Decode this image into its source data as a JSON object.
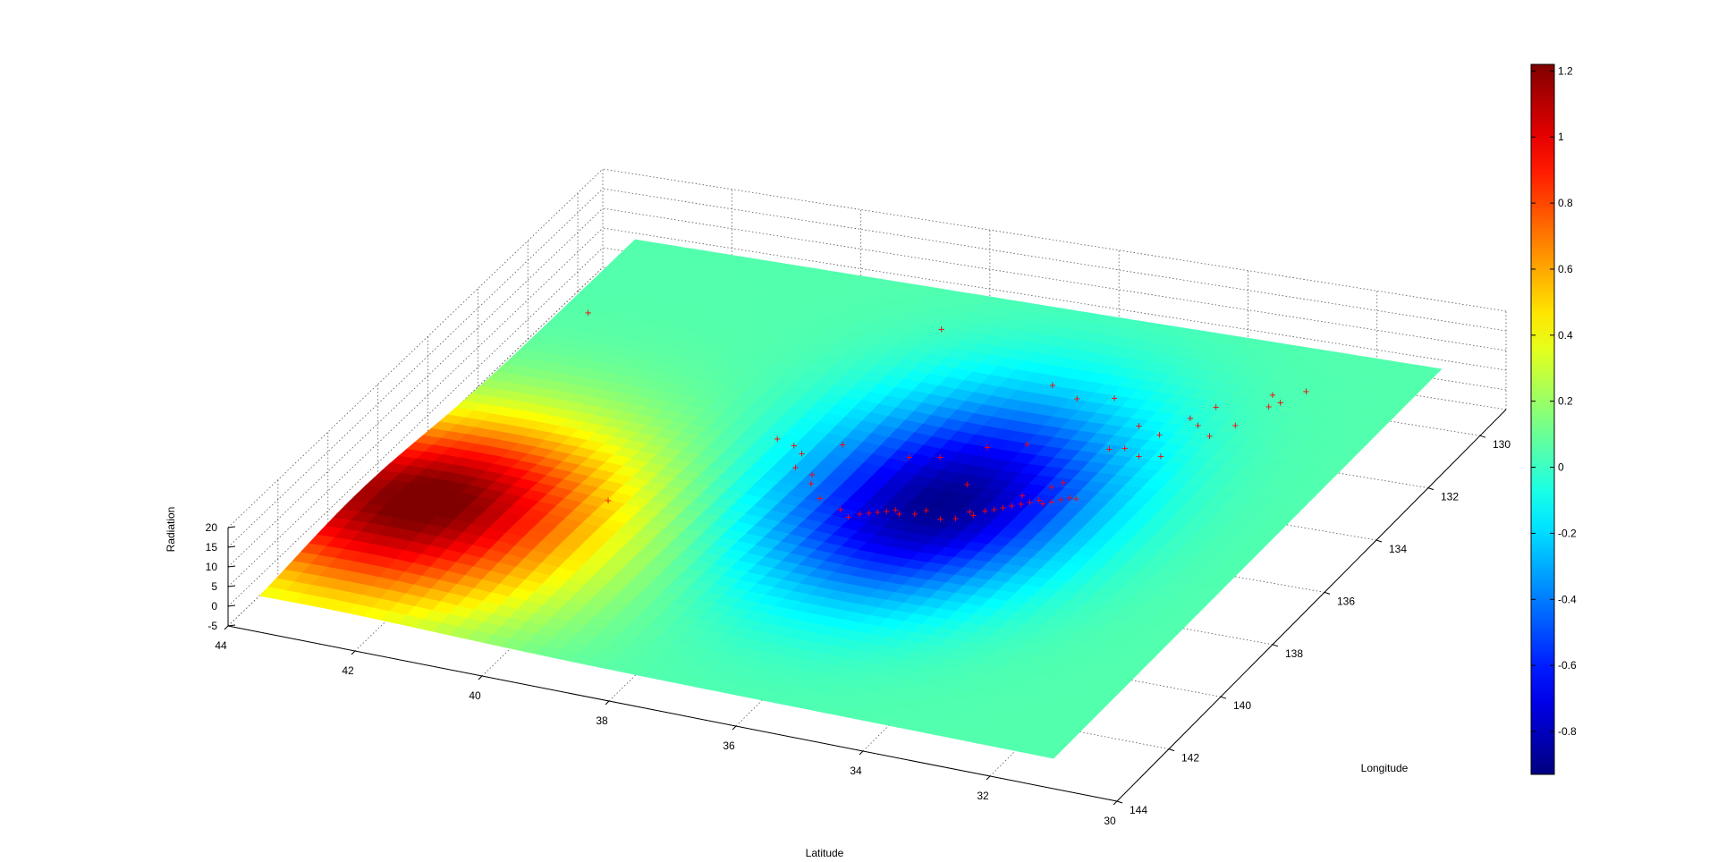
{
  "figure": {
    "background": "#ffffff",
    "grid": true
  },
  "chart_data": {
    "type": "surface",
    "xlabel": "Latitude",
    "ylabel": "Longitude",
    "zlabel": "Radiation",
    "xlim": [
      30,
      44
    ],
    "ylim": [
      129,
      144
    ],
    "zlim": [
      -5,
      20
    ],
    "x_ticks": [
      "30",
      "32",
      "34",
      "36",
      "38",
      "40",
      "42",
      "44"
    ],
    "y_ticks": [
      "130",
      "132",
      "134",
      "136",
      "138",
      "140",
      "142",
      "144"
    ],
    "z_ticks": [
      "-5",
      "0",
      "5",
      "10",
      "15",
      "20"
    ],
    "surface_extent": {
      "lat": [
        31,
        43.5
      ],
      "lon": [
        129,
        144
      ]
    },
    "surface_colormap": "jet",
    "surface_features": [
      {
        "name": "high",
        "lat": 42.5,
        "lon": 140,
        "value": 1.2
      },
      {
        "name": "low",
        "lat": 36,
        "lon": 136,
        "value": -0.9
      }
    ],
    "colorbar": {
      "clim": [
        -0.93,
        1.22
      ],
      "ticks": [
        "-0.8",
        "-0.6",
        "-0.4",
        "-0.2",
        "0",
        "0.2",
        "0.4",
        "0.6",
        "0.8",
        "1",
        "1.2"
      ],
      "tick_values": [
        -0.8,
        -0.6,
        -0.4,
        -0.2,
        0,
        0.2,
        0.4,
        0.6,
        0.8,
        1,
        1.2
      ]
    },
    "markers": {
      "symbol": "+",
      "color": "#ff0000",
      "points": [
        [
          43.1,
          131.9
        ],
        [
          40.2,
          138.5
        ],
        [
          38.9,
          135.1
        ],
        [
          38.6,
          135.2
        ],
        [
          38.4,
          135.4
        ],
        [
          38.0,
          134.8
        ],
        [
          38.3,
          135.9
        ],
        [
          38.0,
          136.0
        ],
        [
          37.9,
          136.3
        ],
        [
          37.6,
          136.7
        ],
        [
          37.2,
          136.9
        ],
        [
          37.0,
          137.1
        ],
        [
          36.9,
          136.9
        ],
        [
          36.8,
          136.8
        ],
        [
          36.7,
          136.7
        ],
        [
          36.6,
          136.6
        ],
        [
          36.5,
          136.5
        ],
        [
          36.4,
          136.6
        ],
        [
          36.2,
          136.5
        ],
        [
          36.1,
          136.3
        ],
        [
          35.8,
          136.5
        ],
        [
          35.6,
          136.4
        ],
        [
          35.5,
          136.1
        ],
        [
          35.4,
          136.2
        ],
        [
          35.3,
          136.0
        ],
        [
          35.2,
          135.9
        ],
        [
          35.1,
          135.8
        ],
        [
          35.0,
          135.7
        ],
        [
          35.0,
          135.3
        ],
        [
          34.9,
          135.6
        ],
        [
          34.8,
          135.5
        ],
        [
          34.7,
          135.4
        ],
        [
          34.6,
          135.5
        ],
        [
          34.5,
          135.4
        ],
        [
          34.4,
          135.3
        ],
        [
          34.3,
          135.2
        ],
        [
          34.2,
          135.2
        ],
        [
          37.0,
          134.7
        ],
        [
          36.6,
          134.5
        ],
        [
          36.1,
          133.9
        ],
        [
          35.6,
          133.6
        ],
        [
          35.9,
          135.2
        ],
        [
          34.7,
          134.9
        ],
        [
          34.6,
          134.7
        ],
        [
          33.9,
          133.5
        ],
        [
          33.6,
          133.4
        ],
        [
          34.4,
          133.4
        ],
        [
          34.2,
          133.3
        ],
        [
          34.3,
          132.5
        ],
        [
          33.9,
          132.7
        ],
        [
          33.5,
          132.2
        ],
        [
          33.7,
          132.0
        ],
        [
          33.5,
          131.5
        ],
        [
          32.8,
          131.2
        ],
        [
          32.7,
          131.0
        ],
        [
          32.9,
          130.8
        ],
        [
          32.5,
          130.5
        ],
        [
          33.0,
          132.0
        ],
        [
          33.2,
          132.5
        ],
        [
          38.2,
          130.4
        ],
        [
          35.0,
          131.7
        ],
        [
          36.0,
          131.6
        ],
        [
          35.5,
          131.9
        ]
      ]
    }
  }
}
